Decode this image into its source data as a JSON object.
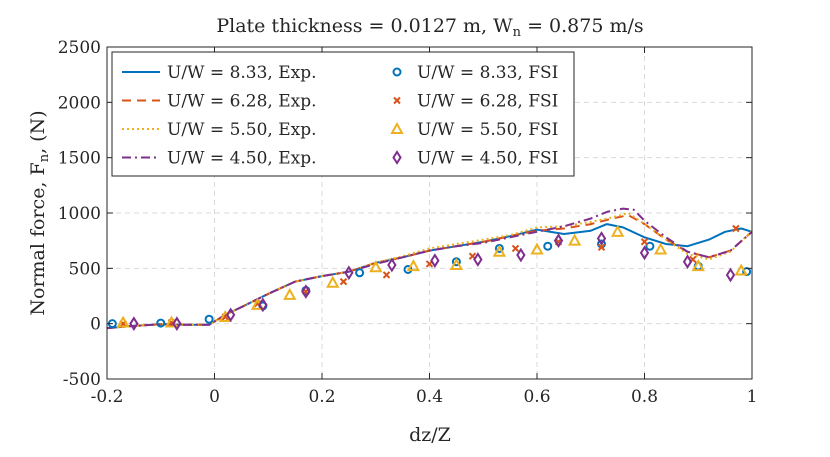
{
  "chart_data": {
    "type": "line",
    "title": "Plate thickness = 0.0127 m, W",
    "title_subscript": "n",
    "title_suffix": " = 0.875 m/s",
    "xlabel": "dz/Z",
    "ylabel": "Normal force, F",
    "ylabel_subscript": "n",
    "ylabel_suffix": ", (N)",
    "xlim": [
      -0.2,
      1.0
    ],
    "ylim": [
      -500,
      2500
    ],
    "xticks": [
      -0.2,
      0,
      0.2,
      0.4,
      0.6,
      0.8,
      1
    ],
    "xtick_labels": [
      "-0.2",
      "0",
      "0.2",
      "0.4",
      "0.6",
      "0.8",
      "1"
    ],
    "yticks": [
      -500,
      0,
      500,
      1000,
      1500,
      2000,
      2500
    ],
    "ytick_labels": [
      "-500",
      "0",
      "500",
      "1000",
      "1500",
      "2000",
      "2500"
    ],
    "grid": true,
    "legend_position": "top-left",
    "lines": [
      {
        "name": "U/W = 8.33, Exp.",
        "color": "#0072BD",
        "style": "solid",
        "x": [
          -0.2,
          -0.15,
          -0.1,
          -0.05,
          -0.01,
          0.0,
          0.02,
          0.05,
          0.1,
          0.15,
          0.2,
          0.25,
          0.3,
          0.35,
          0.4,
          0.45,
          0.5,
          0.55,
          0.6,
          0.65,
          0.7,
          0.73,
          0.76,
          0.8,
          0.84,
          0.88,
          0.92,
          0.95,
          0.98,
          1.0
        ],
        "y": [
          -40,
          -20,
          -5,
          -10,
          -10,
          20,
          80,
          150,
          270,
          380,
          430,
          470,
          550,
          600,
          660,
          700,
          740,
          790,
          850,
          810,
          840,
          900,
          870,
          780,
          720,
          700,
          760,
          830,
          860,
          830
        ]
      },
      {
        "name": "U/W = 6.28, Exp.",
        "color": "#D95319",
        "style": "dashed",
        "x": [
          -0.2,
          -0.15,
          -0.1,
          -0.05,
          -0.01,
          0.0,
          0.02,
          0.05,
          0.1,
          0.15,
          0.2,
          0.25,
          0.3,
          0.35,
          0.4,
          0.45,
          0.5,
          0.55,
          0.6,
          0.65,
          0.7,
          0.74,
          0.77,
          0.8,
          0.84,
          0.88,
          0.92,
          0.96,
          1.0
        ],
        "y": [
          -40,
          -20,
          -5,
          -10,
          -10,
          20,
          80,
          150,
          270,
          380,
          430,
          470,
          550,
          600,
          660,
          700,
          740,
          790,
          840,
          860,
          900,
          950,
          980,
          900,
          760,
          650,
          600,
          660,
          830
        ]
      },
      {
        "name": "U/W = 5.50, Exp.",
        "color": "#EDB120",
        "style": "dotted",
        "x": [
          -0.2,
          -0.15,
          -0.1,
          -0.05,
          -0.01,
          0.0,
          0.02,
          0.05,
          0.1,
          0.15,
          0.2,
          0.25,
          0.3,
          0.35,
          0.4,
          0.45,
          0.5,
          0.55,
          0.6,
          0.65,
          0.7,
          0.74,
          0.77,
          0.8,
          0.84,
          0.88,
          0.92,
          0.96,
          1.0
        ],
        "y": [
          -40,
          -20,
          -5,
          -10,
          -10,
          20,
          80,
          150,
          270,
          380,
          430,
          470,
          550,
          610,
          680,
          720,
          760,
          800,
          870,
          880,
          920,
          960,
          1000,
          900,
          760,
          630,
          580,
          650,
          840
        ]
      },
      {
        "name": "U/W = 4.50, Exp.",
        "color": "#7E2F8E",
        "style": "dashdot",
        "x": [
          -0.2,
          -0.15,
          -0.1,
          -0.05,
          -0.01,
          0.0,
          0.02,
          0.05,
          0.1,
          0.15,
          0.2,
          0.25,
          0.3,
          0.35,
          0.4,
          0.45,
          0.5,
          0.55,
          0.6,
          0.65,
          0.7,
          0.73,
          0.76,
          0.78,
          0.8,
          0.84,
          0.88,
          0.92,
          0.96,
          1.0
        ],
        "y": [
          -40,
          -20,
          -5,
          -10,
          -10,
          20,
          80,
          150,
          270,
          380,
          430,
          470,
          540,
          600,
          660,
          700,
          730,
          780,
          830,
          880,
          950,
          1010,
          1040,
          1030,
          930,
          780,
          650,
          600,
          660,
          830
        ]
      }
    ],
    "scatter": [
      {
        "name": "U/W = 8.33, FSI",
        "color": "#0072BD",
        "marker": "circle",
        "x": [
          -0.19,
          -0.1,
          -0.01,
          0.09,
          0.17,
          0.27,
          0.36,
          0.45,
          0.53,
          0.62,
          0.72,
          0.81,
          0.9,
          0.99
        ],
        "y": [
          0,
          5,
          40,
          160,
          300,
          460,
          490,
          560,
          680,
          700,
          720,
          700,
          520,
          470
        ]
      },
      {
        "name": "U/W = 6.28, FSI",
        "color": "#D95319",
        "marker": "x",
        "x": [
          -0.17,
          -0.08,
          0.02,
          0.08,
          0.17,
          0.24,
          0.32,
          0.4,
          0.48,
          0.56,
          0.64,
          0.72,
          0.8,
          0.89,
          0.97
        ],
        "y": [
          0,
          10,
          60,
          180,
          290,
          380,
          440,
          540,
          610,
          680,
          740,
          690,
          740,
          580,
          860
        ]
      },
      {
        "name": "U/W = 5.50, FSI",
        "color": "#EDB120",
        "marker": "triangle",
        "x": [
          -0.17,
          -0.08,
          0.02,
          0.08,
          0.14,
          0.22,
          0.3,
          0.37,
          0.45,
          0.53,
          0.6,
          0.67,
          0.75,
          0.83,
          0.9,
          0.98
        ],
        "y": [
          10,
          10,
          60,
          170,
          260,
          370,
          510,
          520,
          530,
          650,
          670,
          750,
          830,
          670,
          520,
          480
        ]
      },
      {
        "name": "U/W = 4.50, FSI",
        "color": "#7E2F8E",
        "marker": "diamond",
        "x": [
          -0.15,
          -0.07,
          0.03,
          0.09,
          0.17,
          0.25,
          0.33,
          0.41,
          0.49,
          0.57,
          0.64,
          0.72,
          0.8,
          0.88,
          0.96
        ],
        "y": [
          0,
          0,
          80,
          170,
          290,
          460,
          530,
          570,
          580,
          620,
          750,
          770,
          640,
          560,
          440
        ]
      }
    ]
  }
}
